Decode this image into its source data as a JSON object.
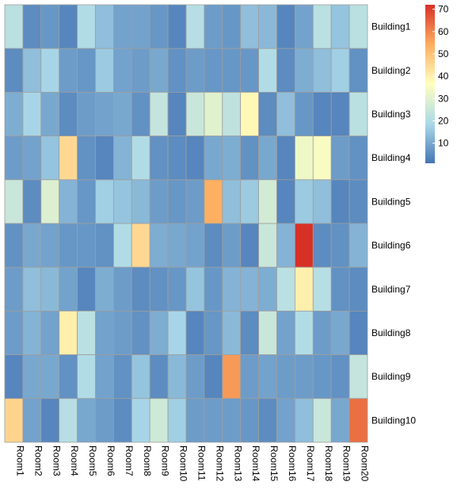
{
  "chart_data": {
    "type": "heatmap",
    "rows": [
      "Building1",
      "Building2",
      "Building3",
      "Building4",
      "Building5",
      "Building6",
      "Building7",
      "Building8",
      "Building9",
      "Building10"
    ],
    "columns": [
      "Room1",
      "Room2",
      "Room3",
      "Room4",
      "Room5",
      "Room6",
      "Room7",
      "Room8",
      "Room9",
      "Room10",
      "Room11",
      "Room12",
      "Room13",
      "Room14",
      "Room15",
      "Room16",
      "Room17",
      "Room18",
      "Room19",
      "Room20"
    ],
    "values": [
      [
        22,
        5,
        7,
        4,
        20,
        14,
        9,
        9,
        7,
        4,
        21,
        8,
        7,
        14,
        13,
        4,
        9,
        22,
        15,
        22
      ],
      [
        5,
        14,
        18,
        8,
        7,
        16,
        9,
        8,
        10,
        6,
        8,
        7,
        7,
        7,
        20,
        5,
        11,
        14,
        17,
        6
      ],
      [
        11,
        18,
        10,
        5,
        8,
        9,
        10,
        6,
        24,
        4,
        25,
        30,
        23,
        38,
        5,
        14,
        7,
        4,
        4,
        22
      ],
      [
        8,
        9,
        15,
        45,
        6,
        4,
        12,
        20,
        6,
        5,
        4,
        10,
        11,
        6,
        10,
        4,
        33,
        35,
        8,
        6
      ],
      [
        25,
        5,
        29,
        12,
        7,
        17,
        15,
        13,
        8,
        7,
        8,
        54,
        14,
        16,
        27,
        4,
        16,
        14,
        4,
        5
      ],
      [
        6,
        10,
        9,
        7,
        7,
        6,
        20,
        45,
        11,
        10,
        9,
        5,
        8,
        4,
        25,
        12,
        72,
        5,
        6,
        12
      ],
      [
        8,
        14,
        13,
        9,
        4,
        11,
        8,
        5,
        6,
        7,
        15,
        7,
        12,
        12,
        11,
        22,
        40,
        21,
        6,
        5
      ],
      [
        8,
        12,
        9,
        40,
        22,
        9,
        8,
        6,
        11,
        18,
        4,
        7,
        13,
        5,
        25,
        9,
        20,
        8,
        10,
        4
      ],
      [
        4,
        10,
        10,
        6,
        20,
        9,
        6,
        15,
        5,
        13,
        8,
        4,
        57,
        8,
        9,
        8,
        8,
        7,
        6,
        24
      ],
      [
        46,
        9,
        4,
        21,
        10,
        8,
        5,
        18,
        26,
        17,
        8,
        8,
        8,
        7,
        5,
        9,
        14,
        25,
        10,
        63
      ]
    ],
    "legend": {
      "ticks": [
        10,
        20,
        30,
        40,
        50,
        60,
        70
      ],
      "min": 1,
      "max": 72,
      "placement": "top-right"
    },
    "colors": [
      "#4575b4",
      "#abd9e9",
      "#ffffbf",
      "#fdae61",
      "#d73027"
    ]
  }
}
